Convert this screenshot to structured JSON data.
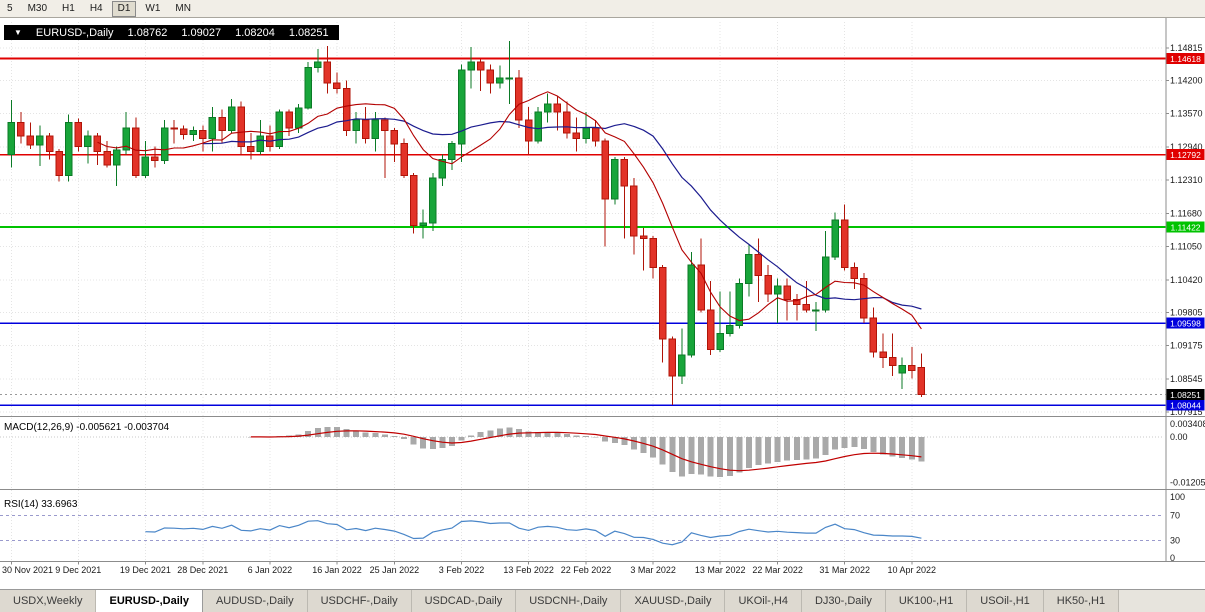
{
  "toolbar": {
    "timeframes": [
      {
        "label": "5",
        "active": false
      },
      {
        "label": "M30",
        "active": false
      },
      {
        "label": "H1",
        "active": false
      },
      {
        "label": "H4",
        "active": false
      },
      {
        "label": "D1",
        "active": true
      },
      {
        "label": "W1",
        "active": false
      },
      {
        "label": "MN",
        "active": false
      }
    ]
  },
  "chart": {
    "title": {
      "dropdown_icon": "▼",
      "symbol": "EURUSD-,Daily",
      "open": "1.08762",
      "high": "1.09027",
      "low": "1.08204",
      "close": "1.08251"
    }
  },
  "chart_data": {
    "type": "candlestick",
    "symbol": "EURUSD-,Daily",
    "price_gridlines": [
      "1.14815",
      "1.14200",
      "1.13570",
      "1.12940",
      "1.12310",
      "1.11680",
      "1.11050",
      "1.10420",
      "1.09805",
      "1.09175",
      "1.08545",
      "1.07915"
    ],
    "hlines": [
      {
        "price": 1.14618,
        "label": "1.14618",
        "color": "#e00000"
      },
      {
        "price": 1.12792,
        "label": "1.12792",
        "color": "#e00000"
      },
      {
        "price": 1.11422,
        "label": "1.11422",
        "color": "#00c300"
      },
      {
        "price": 1.09598,
        "label": "1.09598",
        "color": "#0000dd"
      },
      {
        "price": 1.08044,
        "label": "1.08044",
        "color": "#0000dd"
      }
    ],
    "current_price": {
      "price": 1.08251,
      "label": "1.08251",
      "color": "#000000"
    },
    "date_ticks": [
      {
        "index": 0,
        "label": "30 Nov 2021"
      },
      {
        "index": 7,
        "label": "9 Dec 2021"
      },
      {
        "index": 14,
        "label": "19 Dec 2021"
      },
      {
        "index": 20,
        "label": "28 Dec 2021"
      },
      {
        "index": 27,
        "label": "6 Jan 2022"
      },
      {
        "index": 34,
        "label": "16 Jan 2022"
      },
      {
        "index": 40,
        "label": "25 Jan 2022"
      },
      {
        "index": 47,
        "label": "3 Feb 2022"
      },
      {
        "index": 54,
        "label": "13 Feb 2022"
      },
      {
        "index": 60,
        "label": "22 Feb 2022"
      },
      {
        "index": 67,
        "label": "3 Mar 2022"
      },
      {
        "index": 74,
        "label": "13 Mar 2022"
      },
      {
        "index": 80,
        "label": "22 Mar 2022"
      },
      {
        "index": 87,
        "label": "31 Mar 2022"
      },
      {
        "index": 94,
        "label": "10 Apr 2022"
      }
    ],
    "ma": {
      "fast": {
        "period": 10,
        "color": "#b30000"
      },
      "slow": {
        "period": 21,
        "color": "#1c1c8f"
      }
    },
    "colors": {
      "bull": "#18a53a",
      "bull_border": "#0b7a26",
      "bear": "#e23328",
      "bear_border": "#b01408",
      "grid": "#e4e4e4",
      "axis": "#8c8c8c",
      "label_text": "#1a1a1a"
    },
    "ohlc": [
      [
        1.128,
        1.1383,
        1.1255,
        1.134
      ],
      [
        1.134,
        1.136,
        1.13,
        1.1315
      ],
      [
        1.1315,
        1.134,
        1.129,
        1.1298
      ],
      [
        1.1298,
        1.1335,
        1.1258,
        1.1315
      ],
      [
        1.1315,
        1.132,
        1.127,
        1.1285
      ],
      [
        1.1285,
        1.129,
        1.1228,
        1.124
      ],
      [
        1.124,
        1.1355,
        1.1228,
        1.134
      ],
      [
        1.134,
        1.1348,
        1.1285,
        1.1295
      ],
      [
        1.1295,
        1.1325,
        1.1263,
        1.1315
      ],
      [
        1.1315,
        1.132,
        1.126,
        1.1285
      ],
      [
        1.1285,
        1.1305,
        1.1255,
        1.126
      ],
      [
        1.126,
        1.1295,
        1.122,
        1.1288
      ],
      [
        1.1288,
        1.136,
        1.128,
        1.133
      ],
      [
        1.133,
        1.135,
        1.1235,
        1.124
      ],
      [
        1.124,
        1.1305,
        1.1235,
        1.1275
      ],
      [
        1.1275,
        1.1295,
        1.1255,
        1.1268
      ],
      [
        1.1268,
        1.1345,
        1.1262,
        1.133
      ],
      [
        1.133,
        1.1345,
        1.13,
        1.1328
      ],
      [
        1.1328,
        1.1335,
        1.1308,
        1.1318
      ],
      [
        1.1318,
        1.1333,
        1.1305,
        1.1325
      ],
      [
        1.1325,
        1.1335,
        1.1285,
        1.131
      ],
      [
        1.131,
        1.137,
        1.1285,
        1.135
      ],
      [
        1.135,
        1.1365,
        1.13,
        1.1325
      ],
      [
        1.1325,
        1.1385,
        1.132,
        1.137
      ],
      [
        1.137,
        1.138,
        1.1278,
        1.1295
      ],
      [
        1.1295,
        1.132,
        1.127,
        1.1285
      ],
      [
        1.1285,
        1.1345,
        1.128,
        1.1315
      ],
      [
        1.1315,
        1.1335,
        1.1285,
        1.1295
      ],
      [
        1.1295,
        1.1365,
        1.129,
        1.136
      ],
      [
        1.136,
        1.1365,
        1.1315,
        1.133
      ],
      [
        1.133,
        1.1375,
        1.132,
        1.1368
      ],
      [
        1.1368,
        1.1455,
        1.1365,
        1.1445
      ],
      [
        1.1445,
        1.148,
        1.1435,
        1.1455
      ],
      [
        1.1455,
        1.1485,
        1.1395,
        1.1415
      ],
      [
        1.1415,
        1.1435,
        1.1395,
        1.1405
      ],
      [
        1.1405,
        1.142,
        1.1315,
        1.1325
      ],
      [
        1.1325,
        1.136,
        1.13,
        1.1345
      ],
      [
        1.1345,
        1.137,
        1.13,
        1.131
      ],
      [
        1.131,
        1.136,
        1.1285,
        1.1345
      ],
      [
        1.1345,
        1.135,
        1.1235,
        1.1325
      ],
      [
        1.1325,
        1.133,
        1.1265,
        1.13
      ],
      [
        1.13,
        1.131,
        1.1235,
        1.124
      ],
      [
        1.124,
        1.1245,
        1.113,
        1.1145
      ],
      [
        1.1145,
        1.1175,
        1.112,
        1.115
      ],
      [
        1.115,
        1.1245,
        1.1135,
        1.1235
      ],
      [
        1.1235,
        1.128,
        1.122,
        1.127
      ],
      [
        1.127,
        1.1305,
        1.125,
        1.13
      ],
      [
        1.13,
        1.145,
        1.1265,
        1.144
      ],
      [
        1.144,
        1.1483,
        1.1405,
        1.1455
      ],
      [
        1.1455,
        1.146,
        1.14,
        1.144
      ],
      [
        1.144,
        1.145,
        1.1395,
        1.1415
      ],
      [
        1.1415,
        1.1448,
        1.1405,
        1.1425
      ],
      [
        1.1425,
        1.1495,
        1.1375,
        1.1425
      ],
      [
        1.1425,
        1.144,
        1.133,
        1.1345
      ],
      [
        1.1345,
        1.137,
        1.128,
        1.1305
      ],
      [
        1.1305,
        1.137,
        1.13,
        1.136
      ],
      [
        1.136,
        1.1395,
        1.134,
        1.1375
      ],
      [
        1.1375,
        1.139,
        1.1325,
        1.136
      ],
      [
        1.136,
        1.138,
        1.131,
        1.132
      ],
      [
        1.132,
        1.135,
        1.1285,
        1.131
      ],
      [
        1.131,
        1.136,
        1.13,
        1.133
      ],
      [
        1.133,
        1.1345,
        1.1295,
        1.1305
      ],
      [
        1.1305,
        1.131,
        1.1105,
        1.1195
      ],
      [
        1.1195,
        1.1275,
        1.1185,
        1.127
      ],
      [
        1.127,
        1.1275,
        1.112,
        1.122
      ],
      [
        1.122,
        1.1235,
        1.109,
        1.1125
      ],
      [
        1.1125,
        1.114,
        1.106,
        1.112
      ],
      [
        1.112,
        1.1125,
        1.1045,
        1.1065
      ],
      [
        1.1065,
        1.107,
        1.0885,
        1.093
      ],
      [
        1.093,
        1.0935,
        1.0805,
        1.086
      ],
      [
        1.086,
        1.095,
        1.0845,
        1.09
      ],
      [
        1.09,
        1.1095,
        1.0895,
        1.107
      ],
      [
        1.107,
        1.112,
        1.098,
        1.0985
      ],
      [
        1.0985,
        1.104,
        1.09,
        1.091
      ],
      [
        1.091,
        1.102,
        1.0905,
        1.094
      ],
      [
        1.094,
        1.102,
        1.0935,
        1.0955
      ],
      [
        1.0955,
        1.1045,
        1.095,
        1.1035
      ],
      [
        1.1035,
        1.111,
        1.101,
        1.109
      ],
      [
        1.109,
        1.112,
        1.1,
        1.105
      ],
      [
        1.105,
        1.107,
        1.1,
        1.1015
      ],
      [
        1.1015,
        1.1045,
        1.096,
        1.103
      ],
      [
        1.103,
        1.1045,
        1.0965,
        1.1005
      ],
      [
        1.1005,
        1.1015,
        1.0965,
        1.0995
      ],
      [
        1.0995,
        1.104,
        1.098,
        1.0985
      ],
      [
        1.0985,
        1.1,
        1.0945,
        1.0985
      ],
      [
        1.0985,
        1.1135,
        1.098,
        1.1085
      ],
      [
        1.1085,
        1.117,
        1.108,
        1.1155
      ],
      [
        1.1155,
        1.1185,
        1.106,
        1.1065
      ],
      [
        1.1065,
        1.1075,
        1.1025,
        1.1045
      ],
      [
        1.1045,
        1.1055,
        1.096,
        1.097
      ],
      [
        1.097,
        1.099,
        1.0895,
        1.0905
      ],
      [
        1.0905,
        1.094,
        1.0875,
        1.0895
      ],
      [
        1.0895,
        1.094,
        1.086,
        1.088
      ],
      [
        1.0865,
        1.0895,
        1.0835,
        1.088
      ],
      [
        1.088,
        1.0915,
        1.0855,
        1.087
      ],
      [
        1.08762,
        1.09027,
        1.08204,
        1.08251
      ]
    ],
    "indicators": {
      "macd": {
        "label": "MACD(12,26,9) -0.005621 -0.003704",
        "params": {
          "fast": 12,
          "slow": 26,
          "signal": 9
        },
        "axis_labels": [
          {
            "value": 0.003408,
            "text": "0.003408"
          },
          {
            "value": 0,
            "text": "0.00"
          },
          {
            "value": -0.01205,
            "text": "-0.01205"
          }
        ],
        "histogram_color": "#a9a9a9",
        "signal_color": "#c00000"
      },
      "rsi": {
        "label": "RSI(14) 33.6963",
        "period": 14,
        "line_color": "#4a86c8",
        "axis_labels": [
          {
            "value": 100,
            "text": "100"
          },
          {
            "value": 70,
            "text": "70"
          },
          {
            "value": 30,
            "text": "30"
          },
          {
            "value": 0,
            "text": "0"
          }
        ],
        "level_lines": [
          70,
          30
        ]
      }
    }
  },
  "tabs": {
    "items": [
      {
        "label": "USDX,Weekly",
        "active": false
      },
      {
        "label": "EURUSD-,Daily",
        "active": true
      },
      {
        "label": "AUDUSD-,Daily",
        "active": false
      },
      {
        "label": "USDCHF-,Daily",
        "active": false
      },
      {
        "label": "USDCAD-,Daily",
        "active": false
      },
      {
        "label": "USDCNH-,Daily",
        "active": false
      },
      {
        "label": "XAUUSD-,Daily",
        "active": false
      },
      {
        "label": "UKOil-,H4",
        "active": false
      },
      {
        "label": "DJ30-,Daily",
        "active": false
      },
      {
        "label": "UK100-,H1",
        "active": false
      },
      {
        "label": "USOil-,H1",
        "active": false
      },
      {
        "label": "HK50-,H1",
        "active": false
      }
    ]
  }
}
